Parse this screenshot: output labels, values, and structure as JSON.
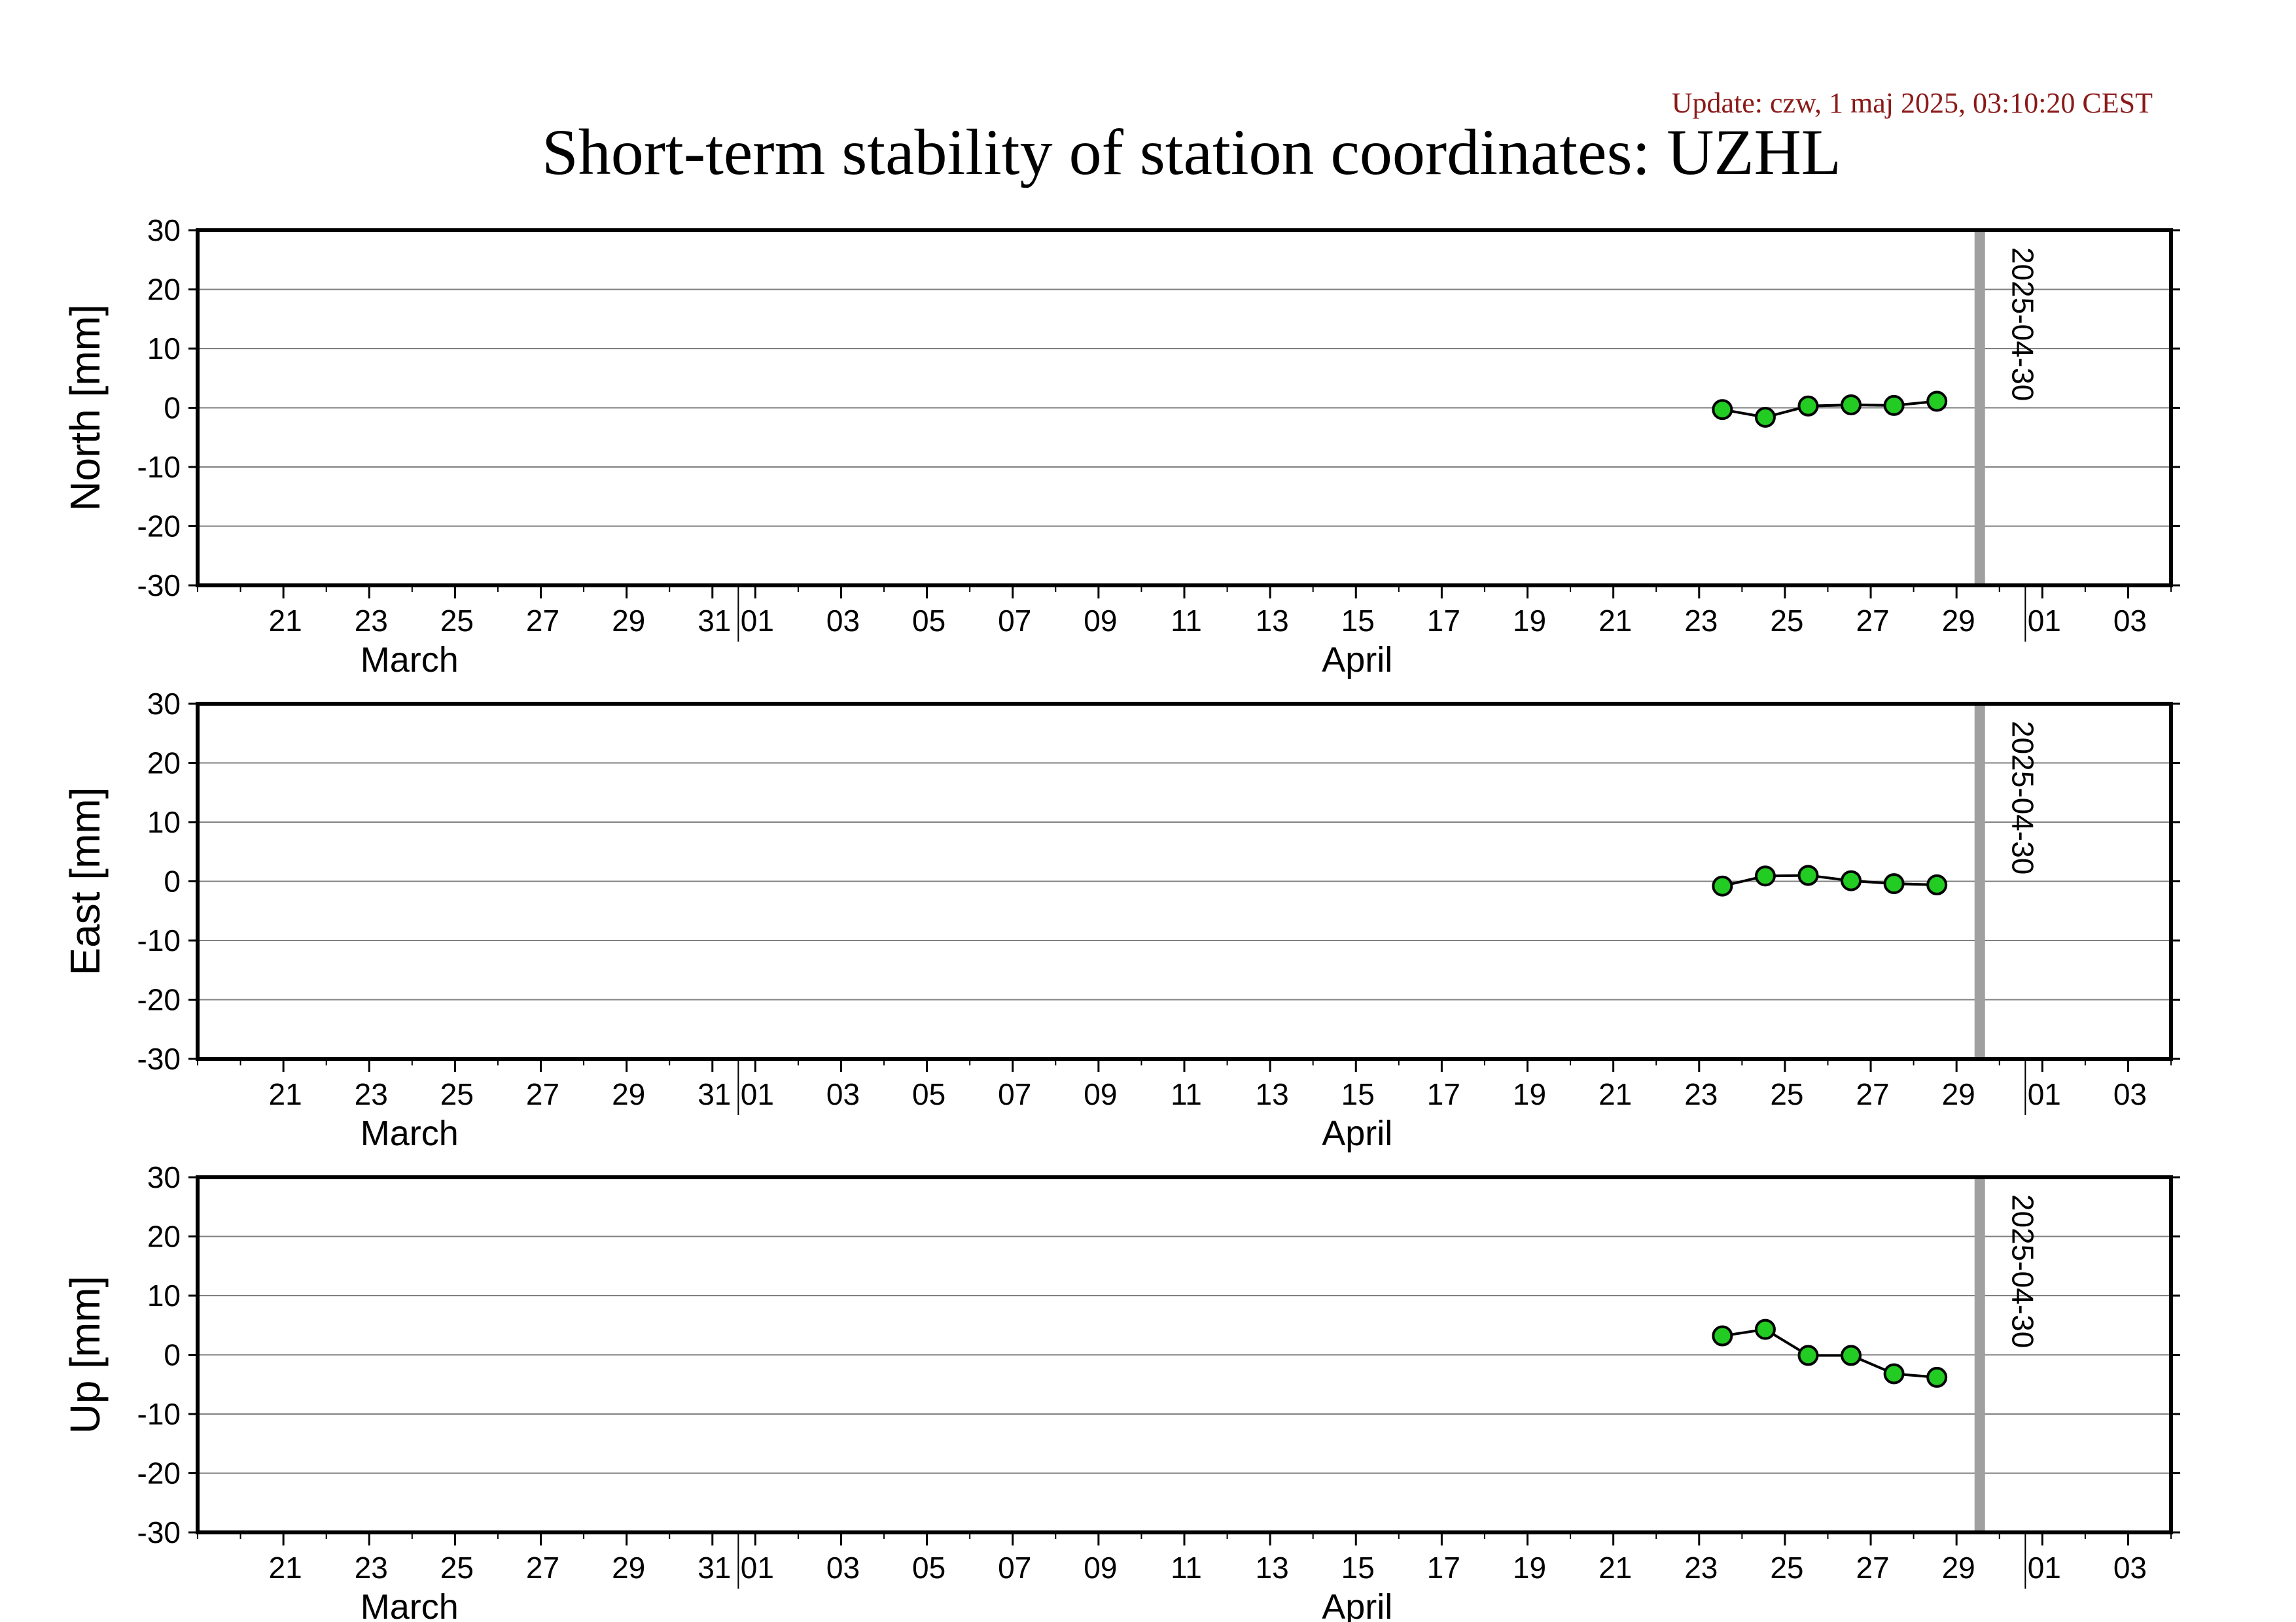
{
  "page": {
    "update": "Update: czw, 1 maj 2025, 03:10:20 CEST",
    "title": "Short-term stability of station coordinates: UZHL"
  },
  "colors": {
    "update_text": "#8b1a1a",
    "point_fill": "#22cc22",
    "marker_line": "#a0a0a0",
    "grid": "#808080"
  },
  "chart_data": [
    {
      "type": "line",
      "ylabel": "North [mm]",
      "ylim": [
        -30,
        30
      ],
      "yticks": [
        30,
        20,
        10,
        0,
        -10,
        -20,
        -30
      ],
      "xlim": [
        "2025-03-19",
        "2025-05-04"
      ],
      "x_tick_labels": [
        "21",
        "23",
        "25",
        "27",
        "29",
        "31",
        "01",
        "03",
        "05",
        "07",
        "09",
        "11",
        "13",
        "15",
        "17",
        "19",
        "21",
        "23",
        "25",
        "27",
        "29",
        "01",
        "03"
      ],
      "month_labels": [
        "March",
        "April"
      ],
      "marker": {
        "date": "2025-04-30",
        "label": "2025-04-30"
      },
      "grid": true,
      "series": [
        {
          "x": [
            "2025-04-24",
            "2025-04-25",
            "2025-04-26",
            "2025-04-27",
            "2025-04-28",
            "2025-04-29"
          ],
          "y": [
            -0.3,
            -1.6,
            0.3,
            0.5,
            0.4,
            1.1
          ]
        }
      ]
    },
    {
      "type": "line",
      "ylabel": "East [mm]",
      "ylim": [
        -30,
        30
      ],
      "yticks": [
        30,
        20,
        10,
        0,
        -10,
        -20,
        -30
      ],
      "xlim": [
        "2025-03-19",
        "2025-05-04"
      ],
      "x_tick_labels": [
        "21",
        "23",
        "25",
        "27",
        "29",
        "31",
        "01",
        "03",
        "05",
        "07",
        "09",
        "11",
        "13",
        "15",
        "17",
        "19",
        "21",
        "23",
        "25",
        "27",
        "29",
        "01",
        "03"
      ],
      "month_labels": [
        "March",
        "April"
      ],
      "marker": {
        "date": "2025-04-30",
        "label": "2025-04-30"
      },
      "grid": true,
      "series": [
        {
          "x": [
            "2025-04-24",
            "2025-04-25",
            "2025-04-26",
            "2025-04-27",
            "2025-04-28",
            "2025-04-29"
          ],
          "y": [
            -0.8,
            0.9,
            1.0,
            0.1,
            -0.4,
            -0.6
          ]
        }
      ]
    },
    {
      "type": "line",
      "ylabel": "Up [mm]",
      "ylim": [
        -30,
        30
      ],
      "yticks": [
        30,
        20,
        10,
        0,
        -10,
        -20,
        -30
      ],
      "xlim": [
        "2025-03-19",
        "2025-05-04"
      ],
      "x_tick_labels": [
        "21",
        "23",
        "25",
        "27",
        "29",
        "31",
        "01",
        "03",
        "05",
        "07",
        "09",
        "11",
        "13",
        "15",
        "17",
        "19",
        "21",
        "23",
        "25",
        "27",
        "29",
        "01",
        "03"
      ],
      "month_labels": [
        "March",
        "April"
      ],
      "marker": {
        "date": "2025-04-30",
        "label": "2025-04-30"
      },
      "grid": true,
      "series": [
        {
          "x": [
            "2025-04-24",
            "2025-04-25",
            "2025-04-26",
            "2025-04-27",
            "2025-04-28",
            "2025-04-29"
          ],
          "y": [
            3.2,
            4.3,
            -0.1,
            -0.1,
            -3.2,
            -3.8
          ]
        }
      ]
    }
  ]
}
